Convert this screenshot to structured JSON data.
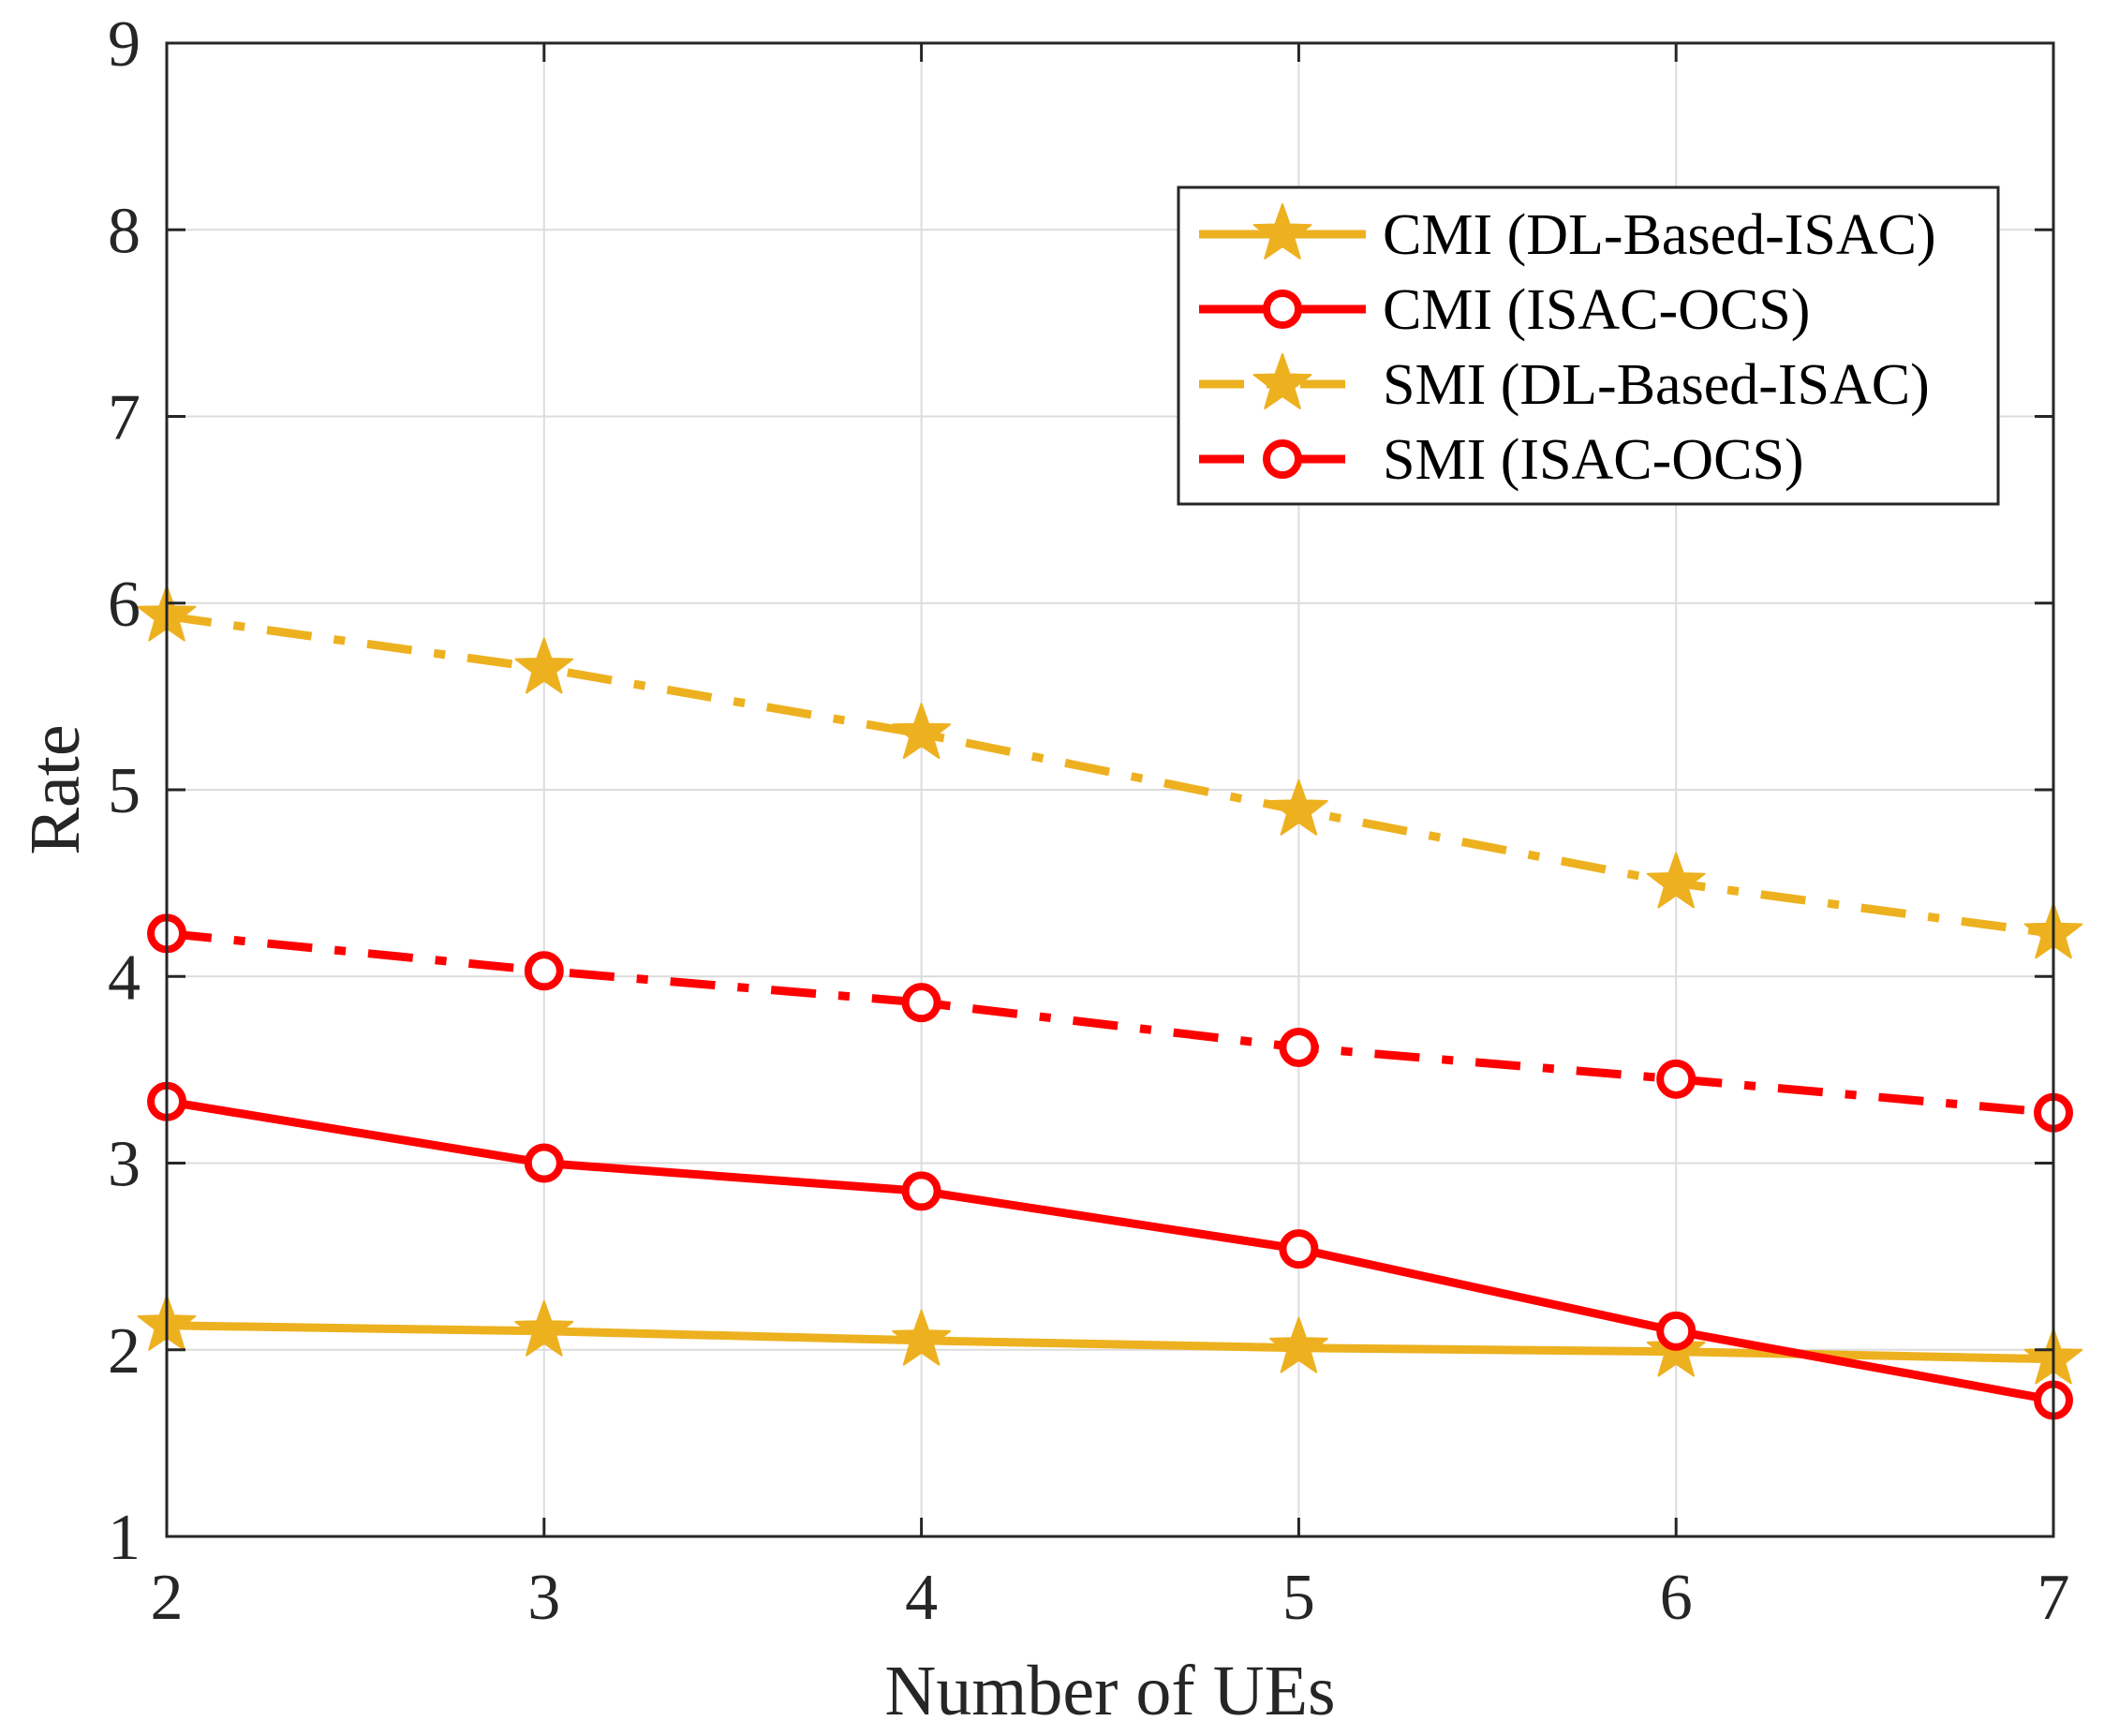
{
  "chart_data": {
    "type": "line",
    "title": "",
    "xlabel": "Number of UEs",
    "ylabel": "Rate",
    "x": [
      2,
      3,
      4,
      5,
      6,
      7
    ],
    "xlim": [
      2,
      7
    ],
    "ylim": [
      1,
      9
    ],
    "xticks": [
      "2",
      "3",
      "4",
      "5",
      "6",
      "7"
    ],
    "yticks": [
      "1",
      "2",
      "3",
      "4",
      "5",
      "6",
      "7",
      "8",
      "9"
    ],
    "grid": true,
    "legend_position": "top-right",
    "series": [
      {
        "name": "CMI (DL-Based-ISAC)",
        "values": [
          2.13,
          2.1,
          2.05,
          2.01,
          1.99,
          1.95
        ],
        "color": "#EDB120",
        "line_style": "solid",
        "marker": "star"
      },
      {
        "name": "CMI (ISAC-OCS)",
        "values": [
          3.33,
          3.0,
          2.85,
          2.54,
          2.1,
          1.73
        ],
        "color": "#FF0000",
        "line_style": "solid",
        "marker": "circle"
      },
      {
        "name": "SMI (DL-Based-ISAC)",
        "values": [
          5.93,
          5.65,
          5.3,
          4.89,
          4.5,
          4.23
        ],
        "color": "#EDB120",
        "line_style": "dashdot",
        "marker": "star"
      },
      {
        "name": "SMI (ISAC-OCS)",
        "values": [
          4.23,
          4.03,
          3.86,
          3.62,
          3.45,
          3.27
        ],
        "color": "#FF0000",
        "line_style": "dashdot",
        "marker": "circle"
      }
    ]
  }
}
